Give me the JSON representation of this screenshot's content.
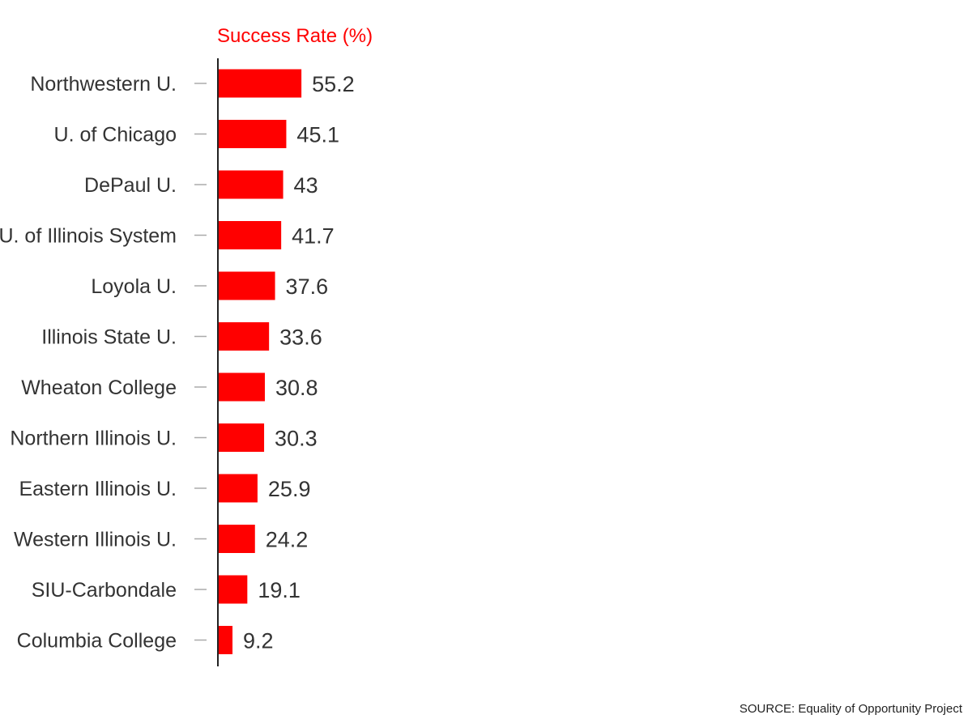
{
  "chart_data": {
    "type": "bar",
    "orientation": "horizontal",
    "series_title": "Success Rate (%)",
    "categories": [
      "Northwestern U.",
      "U. of Chicago",
      "DePaul U.",
      "U. of Illinois System",
      "Loyola U.",
      "Illinois State U.",
      "Wheaton College",
      "Northern Illinois U.",
      "Eastern Illinois U.",
      "Western Illinois U.",
      "SIU-Carbondale",
      "Columbia College"
    ],
    "values": [
      55.2,
      45.1,
      43,
      41.7,
      37.6,
      33.6,
      30.8,
      30.3,
      25.9,
      24.2,
      19.1,
      9.2
    ],
    "value_labels": [
      "55.2",
      "45.1",
      "43",
      "41.7",
      "37.6",
      "33.6",
      "30.8",
      "30.3",
      "25.9",
      "24.2",
      "19.1",
      "9.2"
    ],
    "bar_color": "#ff0000",
    "title_color": "#ff0000",
    "xlim": [
      0,
      100
    ],
    "grid": false,
    "legend": "none"
  },
  "source": "SOURCE: Equality of Opportunity Project"
}
